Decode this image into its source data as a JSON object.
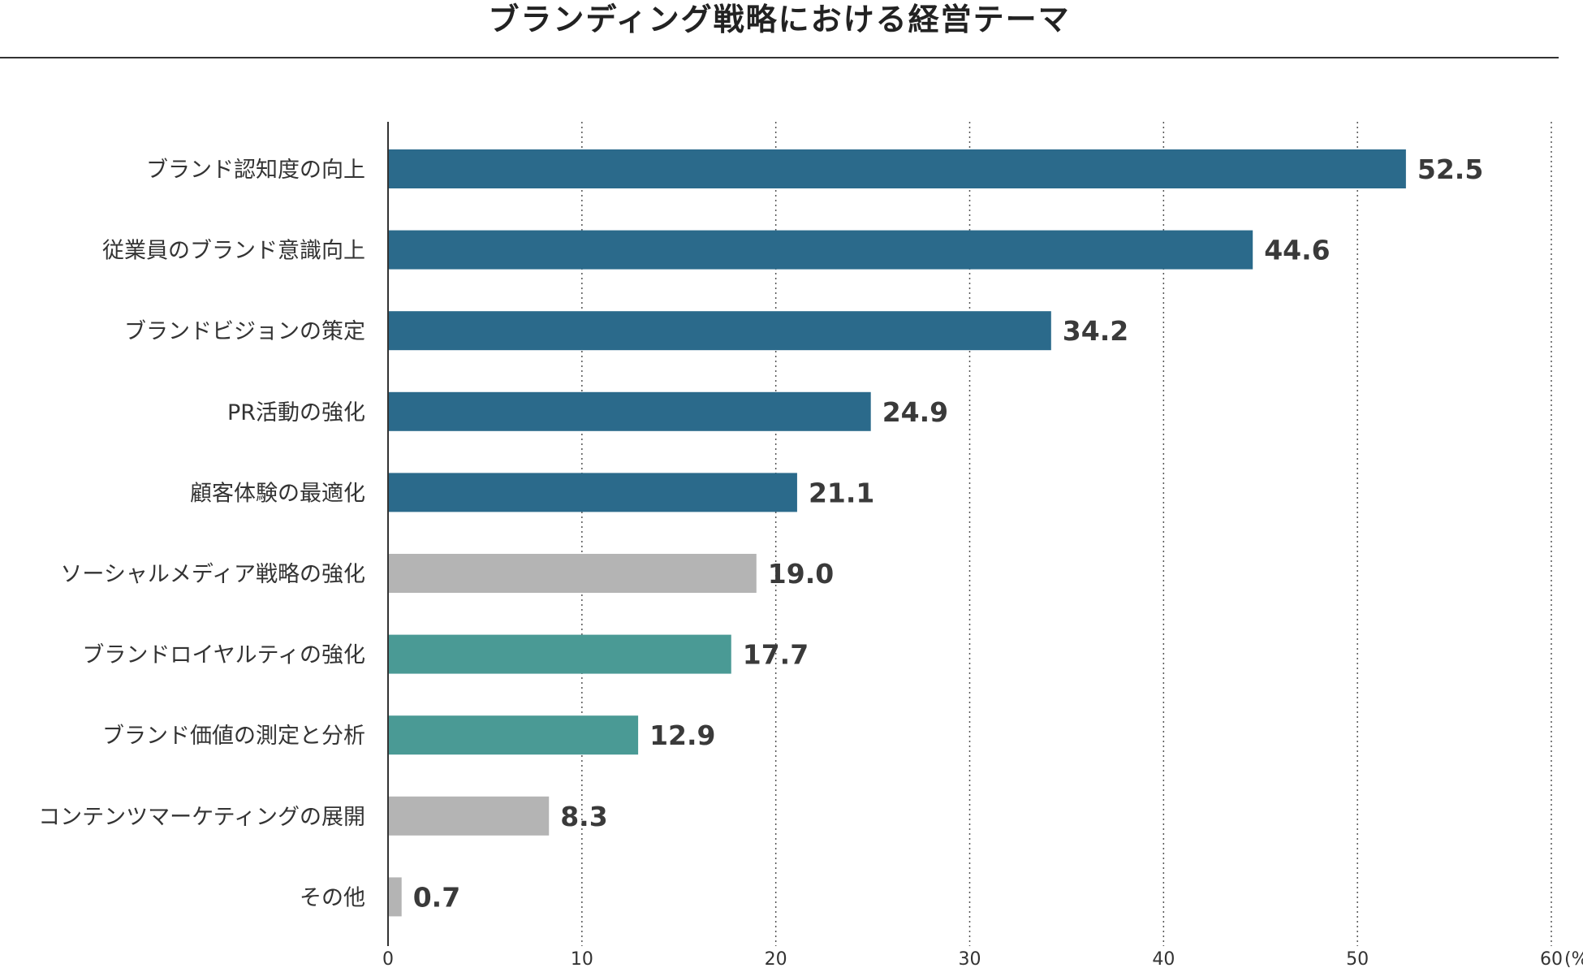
{
  "chart_data": {
    "type": "bar",
    "orientation": "horizontal",
    "title": "ブランディング戦略における経営テーマ",
    "categories": [
      "ブランド認知度の向上",
      "従業員のブランド意識向上",
      "ブランドビジョンの策定",
      "PR活動の強化",
      "顧客体験の最適化",
      "ソーシャルメディア戦略の強化",
      "ブランドロイヤルティの強化",
      "ブランド価値の測定と分析",
      "コンテンツマーケティングの展開",
      "その他"
    ],
    "values": [
      52.5,
      44.6,
      34.2,
      24.9,
      21.1,
      19.0,
      17.7,
      12.9,
      8.3,
      0.7
    ],
    "value_labels": [
      "52.5",
      "44.6",
      "34.2",
      "24.9",
      "21.1",
      "19.0",
      "17.7",
      "12.9",
      "8.3",
      "0.7"
    ],
    "bar_colors": [
      "#2b6a8b",
      "#2b6a8b",
      "#2b6a8b",
      "#2b6a8b",
      "#2b6a8b",
      "#b4b4b4",
      "#4a9a95",
      "#4a9a95",
      "#b4b4b4",
      "#b4b4b4"
    ],
    "xlim": [
      0,
      60
    ],
    "xticks": [
      "0",
      "10",
      "20",
      "30",
      "40",
      "50",
      "60"
    ],
    "xunit": "(%)",
    "grid": "vertical dotted",
    "legend": "none"
  }
}
